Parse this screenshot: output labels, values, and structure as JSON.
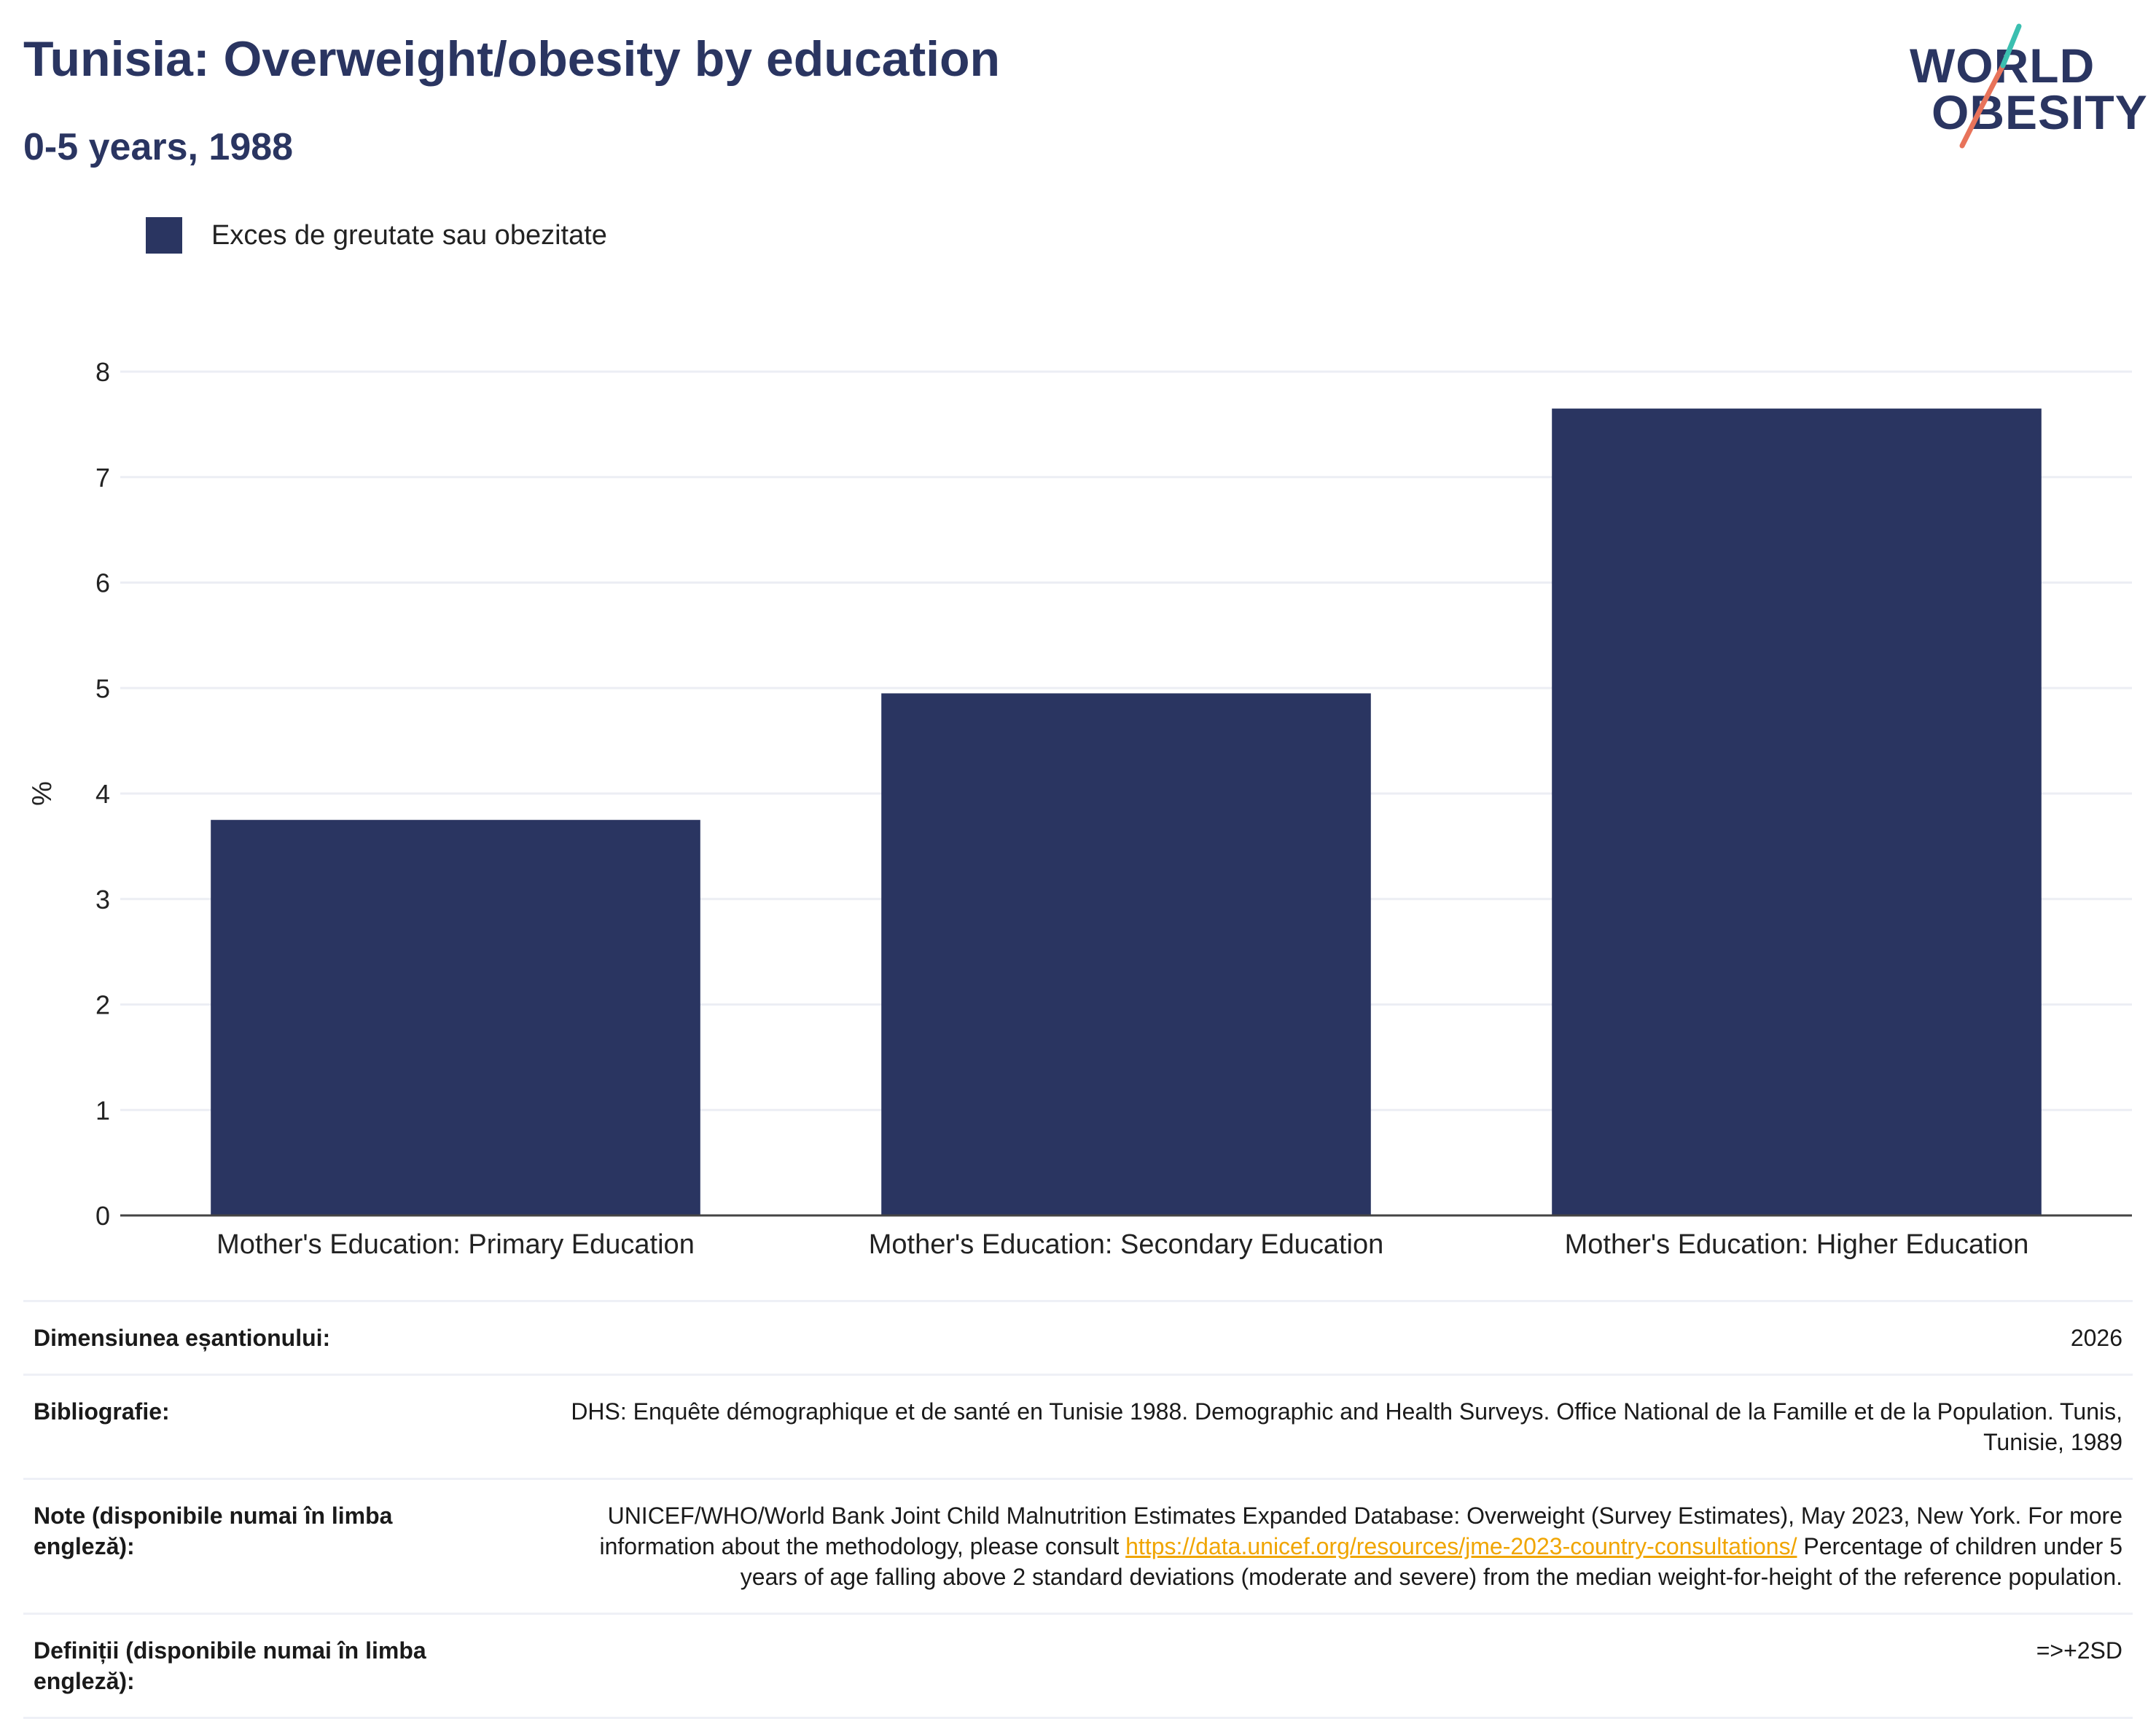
{
  "header": {
    "title": "Tunisia: Overweight/obesity by education",
    "subtitle": "0-5 years, 1988"
  },
  "logo": {
    "line1": "WORLD",
    "line2": "OBESITY",
    "colors": {
      "teal": "#3bbfb0",
      "coral": "#e8735a",
      "navy": "#2a3561"
    }
  },
  "legend": {
    "items": [
      {
        "label": "Exces de greutate sau obezitate",
        "color": "#2a3561"
      }
    ]
  },
  "chart_data": {
    "type": "bar",
    "title": "Tunisia: Overweight/obesity by education",
    "subtitle": "0-5 years, 1988",
    "xlabel": "",
    "ylabel": "%",
    "categories": [
      "Mother's Education: Primary Education",
      "Mother's Education: Secondary Education",
      "Mother's Education: Higher Education"
    ],
    "series": [
      {
        "name": "Exces de greutate sau obezitate",
        "values": [
          3.75,
          4.95,
          7.65
        ],
        "color": "#2a3561"
      }
    ],
    "ylim": [
      0,
      8
    ],
    "yticks": [
      0,
      1,
      2,
      3,
      4,
      5,
      6,
      7,
      8
    ],
    "grid": true,
    "legend_position": "top-left"
  },
  "info": {
    "rows": [
      {
        "label": "Dimensiunea eșantionului:",
        "value": "2026"
      },
      {
        "label": "Bibliografie:",
        "value": "DHS: Enquête démographique et de santé en Tunisie 1988. Demographic and Health Surveys. Office National de la Famille et de la Population. Tunis, Tunisie, 1989"
      },
      {
        "label": "Note (disponibile numai în limba engleză):",
        "value_before": "UNICEF/WHO/World Bank Joint Child Malnutrition Estimates Expanded Database: Overweight (Survey Estimates), May 2023, New York. For more information about the methodology, please consult ",
        "link": "https://data.unicef.org/resources/jme-2023-country-consultations/",
        "value_after": " Percentage of children under 5 years of age falling above 2 standard deviations (moderate and severe) from the median weight-for-height of the reference population."
      },
      {
        "label": "Definiții (disponibile numai în limba engleză):",
        "value": "=>+2SD"
      }
    ]
  }
}
